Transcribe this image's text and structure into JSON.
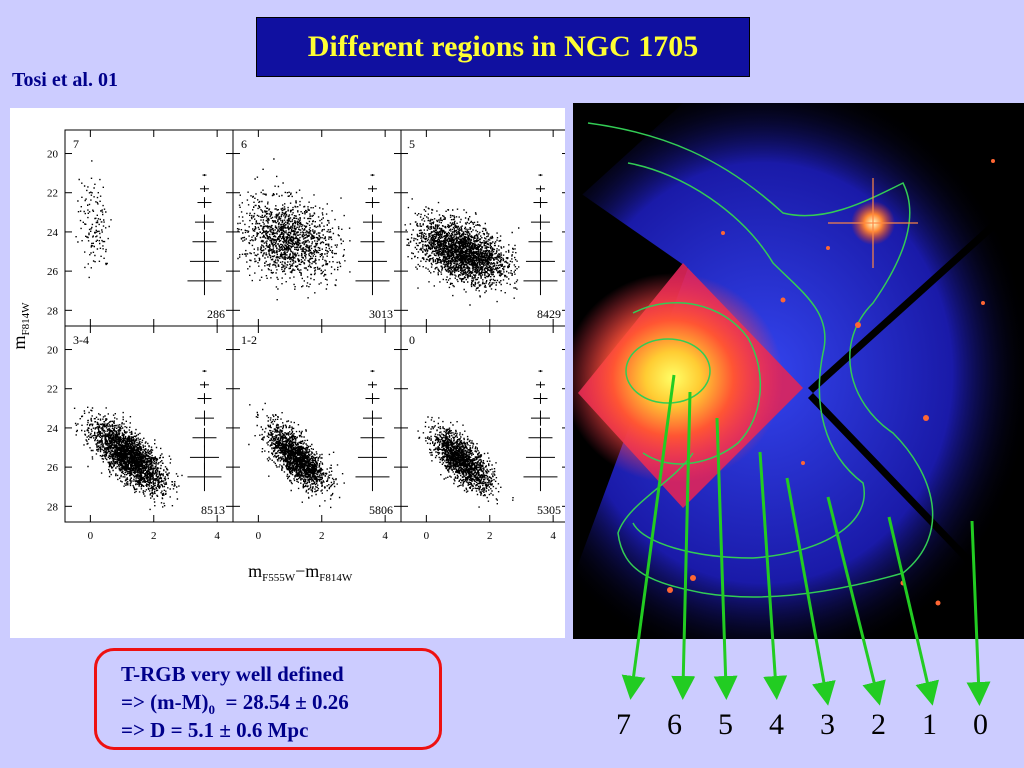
{
  "slide": {
    "title": "Different regions in NGC 1705",
    "reference": "Tosi et al. 01"
  },
  "note": {
    "line1": "T-RGB very well defined",
    "line2_prefix": "=> (m-M)",
    "line2_sub": "0",
    "line2_suffix": "  = 28.54 ± 0.26",
    "line3": "=> D = 5.1 ± 0.6 Mpc"
  },
  "chart_data": {
    "type": "scatter",
    "xlabel_main": "m",
    "xlabel_sub1": "F555W",
    "xlabel_mid": "−m",
    "xlabel_sub2": "F814W",
    "ylabel_main": "m",
    "ylabel_sub": "F814W",
    "xlim": [
      -0.8,
      4.5
    ],
    "ylim": [
      28.8,
      18.8
    ],
    "x_ticks": [
      "0",
      "2",
      "4"
    ],
    "y_ticks": [
      "20",
      "22",
      "24",
      "26",
      "28"
    ],
    "panels": [
      {
        "label": "7",
        "count": "286",
        "cx": 0.1,
        "cy": 23.5,
        "sx": 0.25,
        "sy": 1.2,
        "n": 140,
        "rho": 0.2
      },
      {
        "label": "6",
        "count": "3013",
        "cx": 0.9,
        "cy": 24.3,
        "sx": 0.75,
        "sy": 1.0,
        "n": 1500,
        "rho": 0.2
      },
      {
        "label": "5",
        "count": "8429",
        "cx": 1.1,
        "cy": 25.0,
        "sx": 0.7,
        "sy": 0.8,
        "n": 2600,
        "rho": 0.45
      },
      {
        "label": "3-4",
        "count": "8513",
        "cx": 1.2,
        "cy": 25.4,
        "sx": 0.55,
        "sy": 0.85,
        "n": 2600,
        "rho": 0.7
      },
      {
        "label": "1-2",
        "count": "5806",
        "cx": 1.2,
        "cy": 25.5,
        "sx": 0.45,
        "sy": 0.8,
        "n": 1800,
        "rho": 0.7
      },
      {
        "label": "0",
        "count": "5305",
        "cx": 1.1,
        "cy": 25.6,
        "sx": 0.45,
        "sy": 0.75,
        "n": 1700,
        "rho": 0.7
      }
    ]
  },
  "regions": [
    "7",
    "6",
    "5",
    "4",
    "3",
    "2",
    "1",
    "0"
  ],
  "colors": {
    "background": "#ccccff",
    "title_bg": "#1010a0",
    "title_text": "#ffff33",
    "text": "#00008b",
    "arrow": "#22cc22",
    "note_border": "#ee1111"
  }
}
